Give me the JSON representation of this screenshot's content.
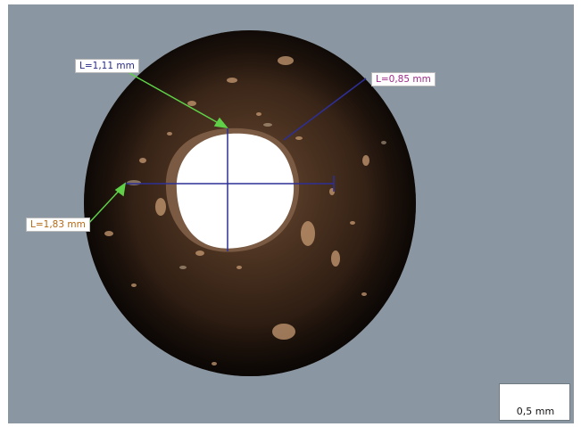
{
  "measurements": [
    {
      "id": "hole-height",
      "text": "L=1,11 mm",
      "color": "#2a2d86"
    },
    {
      "id": "bead-wall",
      "text": "L=0,85 mm",
      "color": "#a12a8a"
    },
    {
      "id": "hole-width",
      "text": "L=1,83 mm",
      "color": "#b56a16"
    }
  ],
  "scale_bar": {
    "text": "0,5 mm"
  },
  "colors": {
    "background": "#8a96a1",
    "bead": "#2a1a10",
    "measure_line": "#2d2f96",
    "arrow": "#5fd048"
  }
}
